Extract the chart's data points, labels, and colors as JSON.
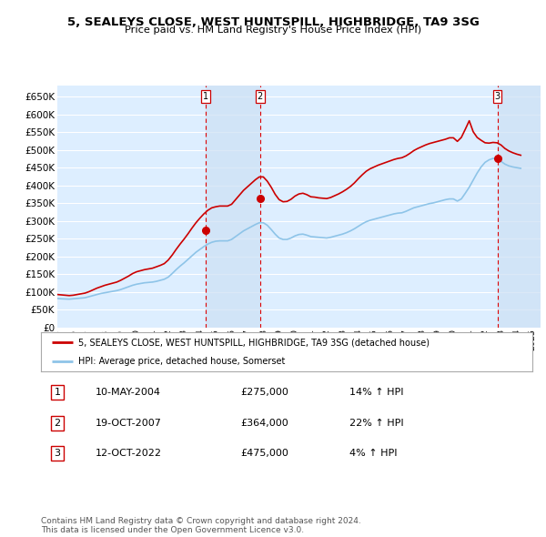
{
  "title": "5, SEALEYS CLOSE, WEST HUNTSPILL, HIGHBRIDGE, TA9 3SG",
  "subtitle": "Price paid vs. HM Land Registry's House Price Index (HPI)",
  "ylim": [
    0,
    680000
  ],
  "yticks": [
    0,
    50000,
    100000,
    150000,
    200000,
    250000,
    300000,
    350000,
    400000,
    450000,
    500000,
    550000,
    600000,
    650000
  ],
  "xlim_start": 1995.0,
  "xlim_end": 2025.5,
  "hpi_color": "#8ec4e8",
  "sale_color": "#cc0000",
  "background_color": "#ddeeff",
  "grid_color": "#ffffff",
  "sales": [
    {
      "year": 2004.36,
      "price": 275000,
      "label": "1"
    },
    {
      "year": 2007.8,
      "price": 364000,
      "label": "2"
    },
    {
      "year": 2022.78,
      "price": 475000,
      "label": "3"
    }
  ],
  "sale_vline_color": "#dd0000",
  "legend_label_red": "5, SEALEYS CLOSE, WEST HUNTSPILL, HIGHBRIDGE, TA9 3SG (detached house)",
  "legend_label_blue": "HPI: Average price, detached house, Somerset",
  "table_rows": [
    {
      "num": "1",
      "date": "10-MAY-2004",
      "price": "£275,000",
      "change": "14% ↑ HPI"
    },
    {
      "num": "2",
      "date": "19-OCT-2007",
      "price": "£364,000",
      "change": "22% ↑ HPI"
    },
    {
      "num": "3",
      "date": "12-OCT-2022",
      "price": "£475,000",
      "change": "4% ↑ HPI"
    }
  ],
  "footer": "Contains HM Land Registry data © Crown copyright and database right 2024.\nThis data is licensed under the Open Government Licence v3.0.",
  "hpi_data_years": [
    1995.0,
    1995.25,
    1995.5,
    1995.75,
    1996.0,
    1996.25,
    1996.5,
    1996.75,
    1997.0,
    1997.25,
    1997.5,
    1997.75,
    1998.0,
    1998.25,
    1998.5,
    1998.75,
    1999.0,
    1999.25,
    1999.5,
    1999.75,
    2000.0,
    2000.25,
    2000.5,
    2000.75,
    2001.0,
    2001.25,
    2001.5,
    2001.75,
    2002.0,
    2002.25,
    2002.5,
    2002.75,
    2003.0,
    2003.25,
    2003.5,
    2003.75,
    2004.0,
    2004.25,
    2004.5,
    2004.75,
    2005.0,
    2005.25,
    2005.5,
    2005.75,
    2006.0,
    2006.25,
    2006.5,
    2006.75,
    2007.0,
    2007.25,
    2007.5,
    2007.75,
    2008.0,
    2008.25,
    2008.5,
    2008.75,
    2009.0,
    2009.25,
    2009.5,
    2009.75,
    2010.0,
    2010.25,
    2010.5,
    2010.75,
    2011.0,
    2011.25,
    2011.5,
    2011.75,
    2012.0,
    2012.25,
    2012.5,
    2012.75,
    2013.0,
    2013.25,
    2013.5,
    2013.75,
    2014.0,
    2014.25,
    2014.5,
    2014.75,
    2015.0,
    2015.25,
    2015.5,
    2015.75,
    2016.0,
    2016.25,
    2016.5,
    2016.75,
    2017.0,
    2017.25,
    2017.5,
    2017.75,
    2018.0,
    2018.25,
    2018.5,
    2018.75,
    2019.0,
    2019.25,
    2019.5,
    2019.75,
    2020.0,
    2020.25,
    2020.5,
    2020.75,
    2021.0,
    2021.25,
    2021.5,
    2021.75,
    2022.0,
    2022.25,
    2022.5,
    2022.75,
    2023.0,
    2023.25,
    2023.5,
    2023.75,
    2024.0,
    2024.25
  ],
  "hpi_data_values": [
    82000,
    81000,
    80500,
    80000,
    81000,
    82000,
    83000,
    84000,
    87000,
    90000,
    93000,
    96000,
    98000,
    100000,
    102000,
    104000,
    107000,
    111000,
    115000,
    119000,
    122000,
    124000,
    126000,
    127000,
    128000,
    130000,
    133000,
    136000,
    142000,
    152000,
    163000,
    173000,
    182000,
    192000,
    202000,
    212000,
    220000,
    228000,
    235000,
    240000,
    243000,
    244000,
    244000,
    244000,
    248000,
    256000,
    264000,
    272000,
    278000,
    284000,
    290000,
    295000,
    295000,
    288000,
    276000,
    263000,
    252000,
    248000,
    248000,
    252000,
    258000,
    262000,
    263000,
    260000,
    256000,
    255000,
    254000,
    253000,
    252000,
    254000,
    257000,
    260000,
    263000,
    267000,
    272000,
    278000,
    285000,
    292000,
    298000,
    302000,
    305000,
    308000,
    311000,
    314000,
    317000,
    320000,
    322000,
    323000,
    327000,
    332000,
    337000,
    340000,
    343000,
    346000,
    349000,
    351000,
    354000,
    357000,
    360000,
    362000,
    362000,
    356000,
    362000,
    378000,
    395000,
    415000,
    435000,
    452000,
    465000,
    472000,
    476000,
    475000,
    468000,
    460000,
    455000,
    452000,
    450000,
    448000
  ],
  "red_data_years": [
    1995.0,
    1995.25,
    1995.5,
    1995.75,
    1996.0,
    1996.25,
    1996.5,
    1996.75,
    1997.0,
    1997.25,
    1997.5,
    1997.75,
    1998.0,
    1998.25,
    1998.5,
    1998.75,
    1999.0,
    1999.25,
    1999.5,
    1999.75,
    2000.0,
    2000.25,
    2000.5,
    2000.75,
    2001.0,
    2001.25,
    2001.5,
    2001.75,
    2002.0,
    2002.25,
    2002.5,
    2002.75,
    2003.0,
    2003.25,
    2003.5,
    2003.75,
    2004.0,
    2004.25,
    2004.5,
    2004.75,
    2005.0,
    2005.25,
    2005.5,
    2005.75,
    2006.0,
    2006.25,
    2006.5,
    2006.75,
    2007.0,
    2007.25,
    2007.5,
    2007.75,
    2008.0,
    2008.25,
    2008.5,
    2008.75,
    2009.0,
    2009.25,
    2009.5,
    2009.75,
    2010.0,
    2010.25,
    2010.5,
    2010.75,
    2011.0,
    2011.25,
    2011.5,
    2011.75,
    2012.0,
    2012.25,
    2012.5,
    2012.75,
    2013.0,
    2013.25,
    2013.5,
    2013.75,
    2014.0,
    2014.25,
    2014.5,
    2014.75,
    2015.0,
    2015.25,
    2015.5,
    2015.75,
    2016.0,
    2016.25,
    2016.5,
    2016.75,
    2017.0,
    2017.25,
    2017.5,
    2017.75,
    2018.0,
    2018.25,
    2018.5,
    2018.75,
    2019.0,
    2019.25,
    2019.5,
    2019.75,
    2020.0,
    2020.25,
    2020.5,
    2020.75,
    2021.0,
    2021.25,
    2021.5,
    2021.75,
    2022.0,
    2022.25,
    2022.5,
    2022.75,
    2023.0,
    2023.25,
    2023.5,
    2023.75,
    2024.0,
    2024.25
  ],
  "red_data_values": [
    93000,
    92000,
    91000,
    90000,
    91000,
    93000,
    95000,
    97000,
    101000,
    106000,
    111000,
    115000,
    119000,
    122000,
    125000,
    128000,
    133000,
    139000,
    145000,
    152000,
    157000,
    160000,
    163000,
    165000,
    167000,
    171000,
    175000,
    180000,
    190000,
    204000,
    220000,
    235000,
    249000,
    264000,
    280000,
    295000,
    308000,
    320000,
    330000,
    337000,
    340000,
    342000,
    342000,
    342000,
    347000,
    360000,
    373000,
    386000,
    396000,
    406000,
    416000,
    424000,
    424000,
    412000,
    395000,
    375000,
    360000,
    354000,
    355000,
    361000,
    370000,
    376000,
    378000,
    374000,
    368000,
    367000,
    365000,
    364000,
    363000,
    366000,
    371000,
    376000,
    382000,
    389000,
    397000,
    407000,
    419000,
    430000,
    440000,
    447000,
    452000,
    457000,
    461000,
    465000,
    469000,
    473000,
    476000,
    478000,
    483000,
    490000,
    498000,
    504000,
    509000,
    514000,
    518000,
    521000,
    524000,
    527000,
    530000,
    534000,
    534000,
    524000,
    535000,
    558000,
    582000,
    551000,
    535000,
    527000,
    520000,
    519000,
    521000,
    520000,
    514000,
    504000,
    497000,
    492000,
    488000,
    485000
  ]
}
